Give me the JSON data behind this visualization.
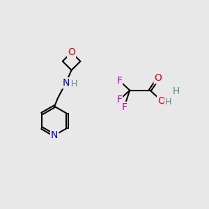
{
  "background_color": "#e8e8e8",
  "atom_colors": {
    "O": "#ff0000",
    "N": "#0000ff",
    "F": "#cc00cc",
    "C": "#000000",
    "H": "#5a9090"
  },
  "bond_color": "#000000",
  "bond_width": 1.5
}
